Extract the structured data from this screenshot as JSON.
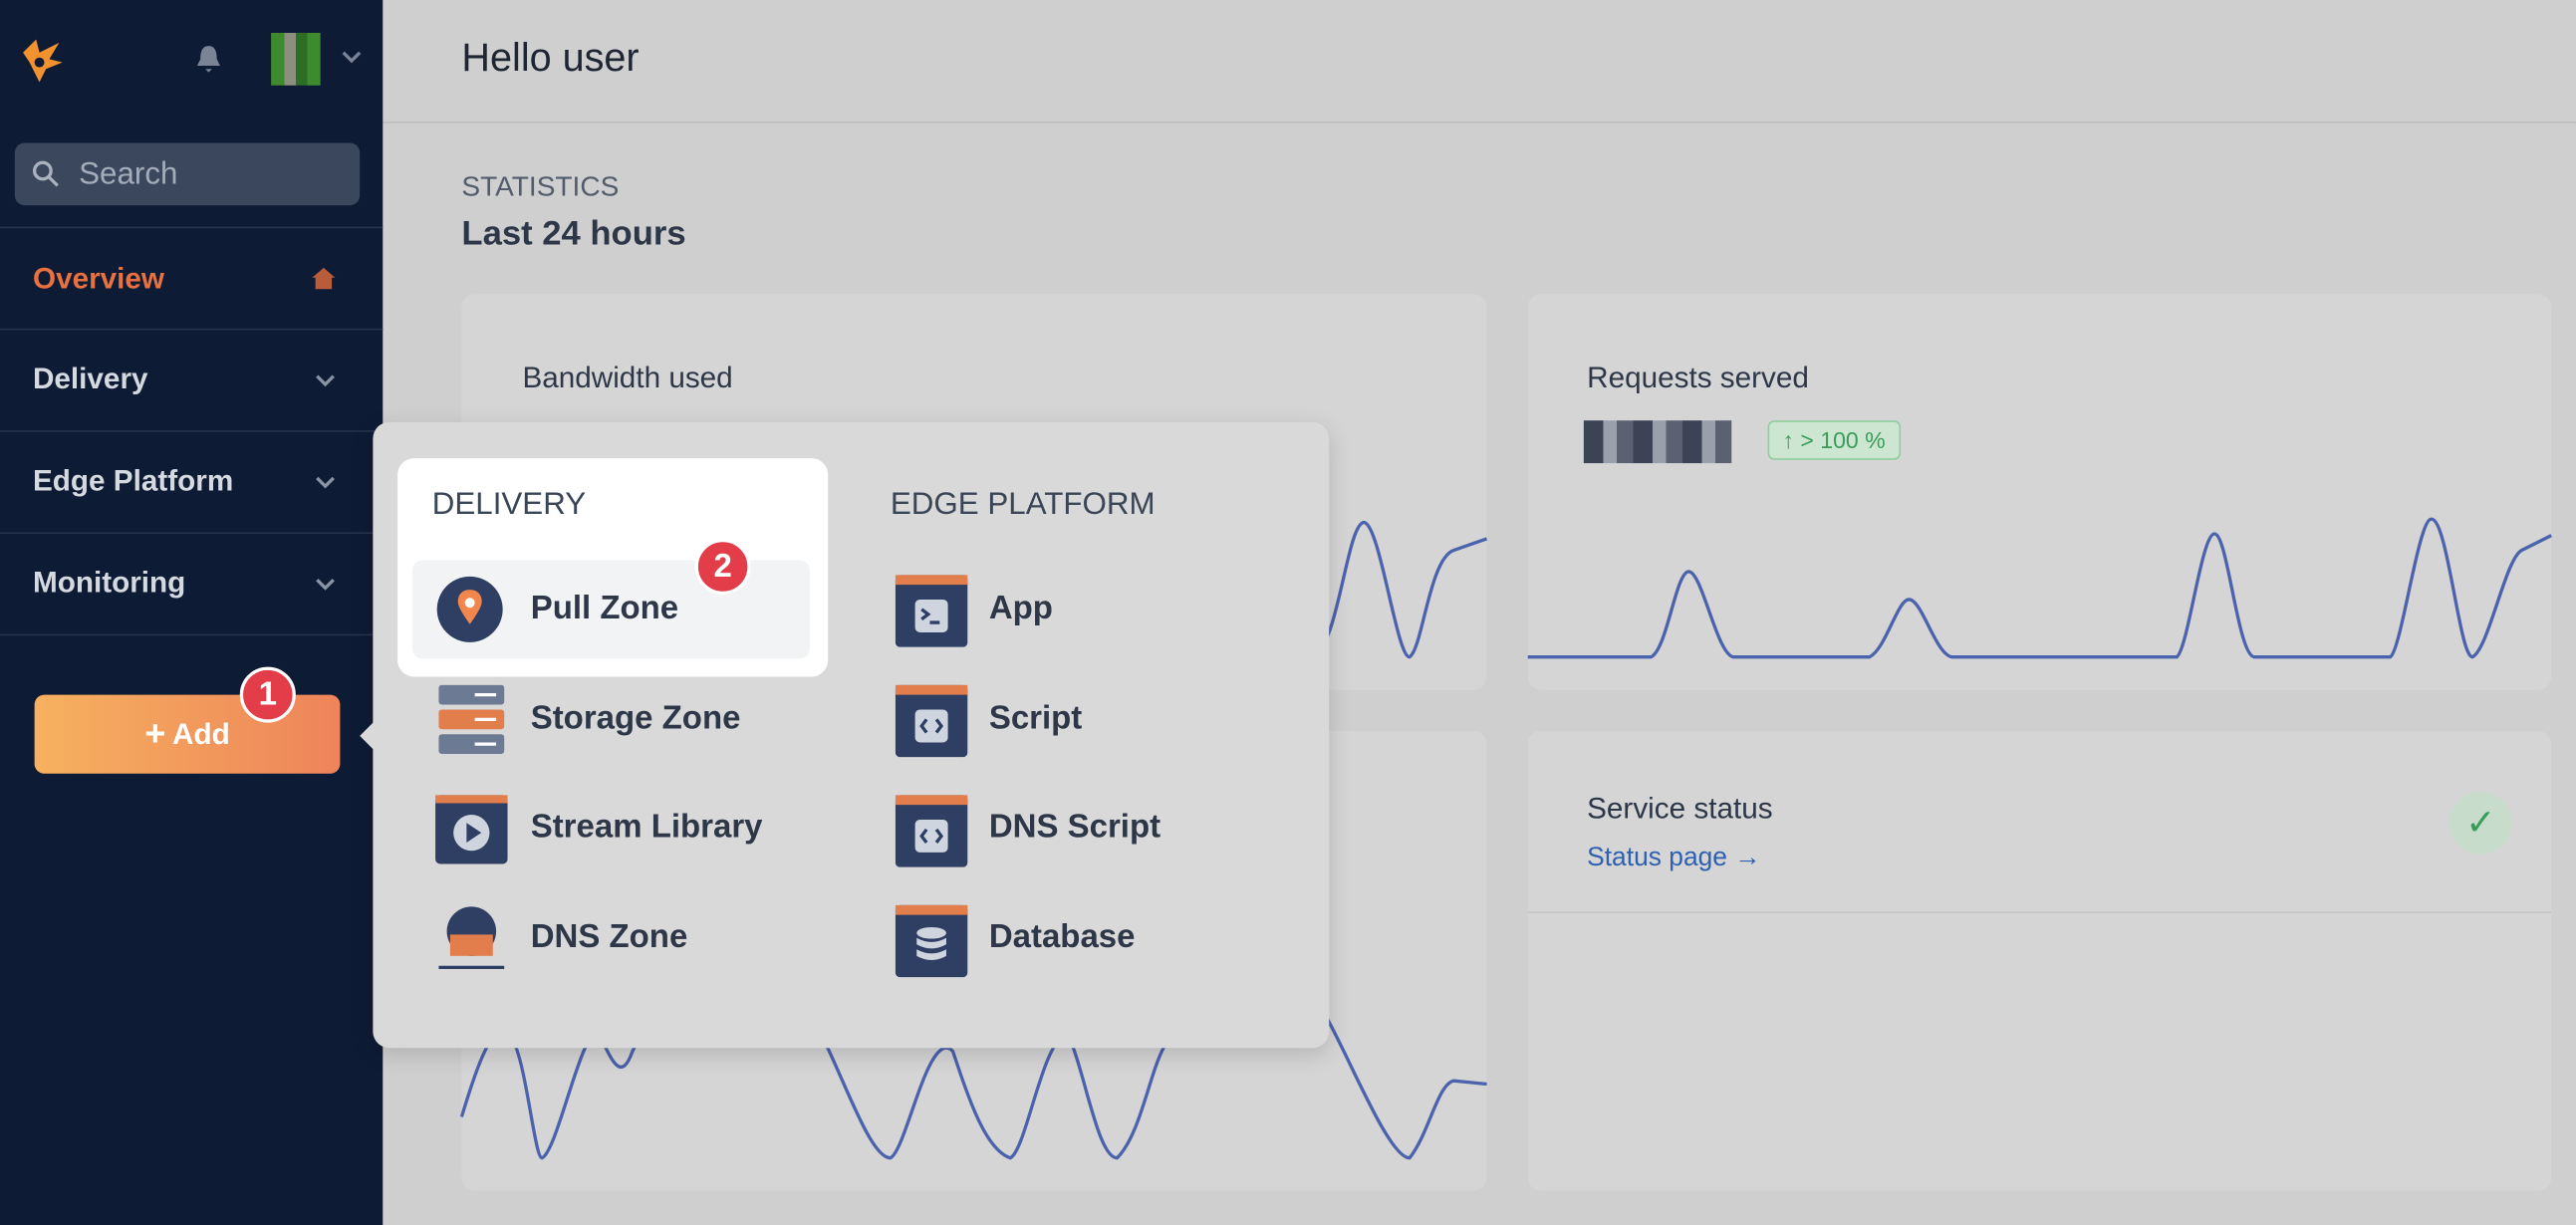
{
  "sidebar": {
    "search_placeholder": "Search",
    "nav": [
      "Overview",
      "Delivery",
      "Edge Platform",
      "Monitoring"
    ],
    "add_button": "Add",
    "step": "1"
  },
  "header": {
    "greeting": "Hello user"
  },
  "statistics": {
    "label": "STATISTICS",
    "period": "Last 24 hours"
  },
  "cards": [
    {
      "title": "Bandwidth used"
    },
    {
      "title": "Requests served",
      "badge": "> 100 %"
    },
    {
      "title": "Service status",
      "link": "Status page →"
    }
  ],
  "menu": {
    "step": "2",
    "groups": [
      {
        "title": "DELIVERY",
        "items": [
          "Pull Zone",
          "Storage Zone",
          "Stream Library",
          "DNS Zone"
        ]
      },
      {
        "title": "EDGE PLATFORM",
        "items": [
          "App",
          "Script",
          "DNS Script",
          "Database"
        ]
      }
    ]
  }
}
